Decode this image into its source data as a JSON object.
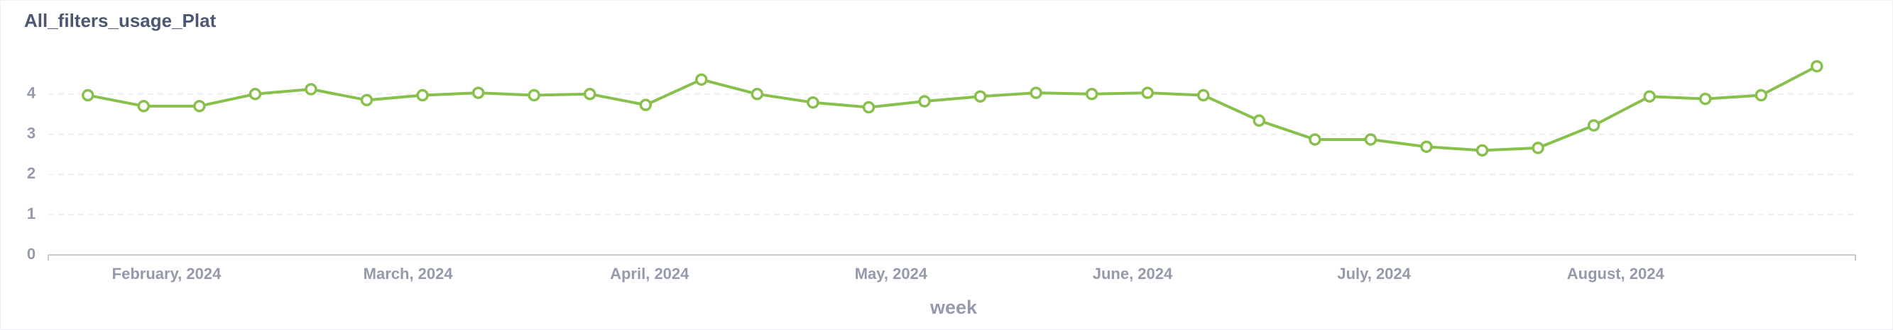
{
  "chart_data": {
    "type": "line",
    "title": "All_filters_usage_Plat",
    "x_label": "week",
    "x": [
      1,
      2,
      3,
      4,
      5,
      6,
      7,
      8,
      9,
      10,
      11,
      12,
      13,
      14,
      15,
      16,
      17,
      18,
      19,
      20,
      21,
      22,
      23,
      24,
      25,
      26,
      27,
      28,
      29,
      30,
      31,
      32
    ],
    "series": [
      {
        "color": "#88bf4d",
        "values": [
          3.97,
          3.7,
          3.7,
          4.0,
          4.12,
          3.85,
          3.97,
          4.03,
          3.97,
          4.0,
          3.73,
          4.36,
          4.0,
          3.79,
          3.67,
          3.82,
          3.94,
          4.03,
          4.0,
          4.03,
          3.97,
          3.34,
          2.87,
          2.87,
          2.69,
          2.6,
          2.66,
          3.22,
          3.94,
          3.88,
          3.97,
          4.69
        ]
      }
    ],
    "xlim": [
      0.29,
      32.69
    ],
    "xticks": [
      {
        "value": 2.41,
        "label": "February, 2024"
      },
      {
        "value": 6.74,
        "label": "March, 2024"
      },
      {
        "value": 11.07,
        "label": "April, 2024"
      },
      {
        "value": 15.4,
        "label": "May, 2024"
      },
      {
        "value": 19.73,
        "label": "June, 2024"
      },
      {
        "value": 24.06,
        "label": "July, 2024"
      },
      {
        "value": 28.39,
        "label": "August, 2024"
      }
    ],
    "ylim": [
      0,
      5
    ],
    "yticks": [
      0,
      1,
      2,
      3,
      4
    ],
    "grid": true
  }
}
